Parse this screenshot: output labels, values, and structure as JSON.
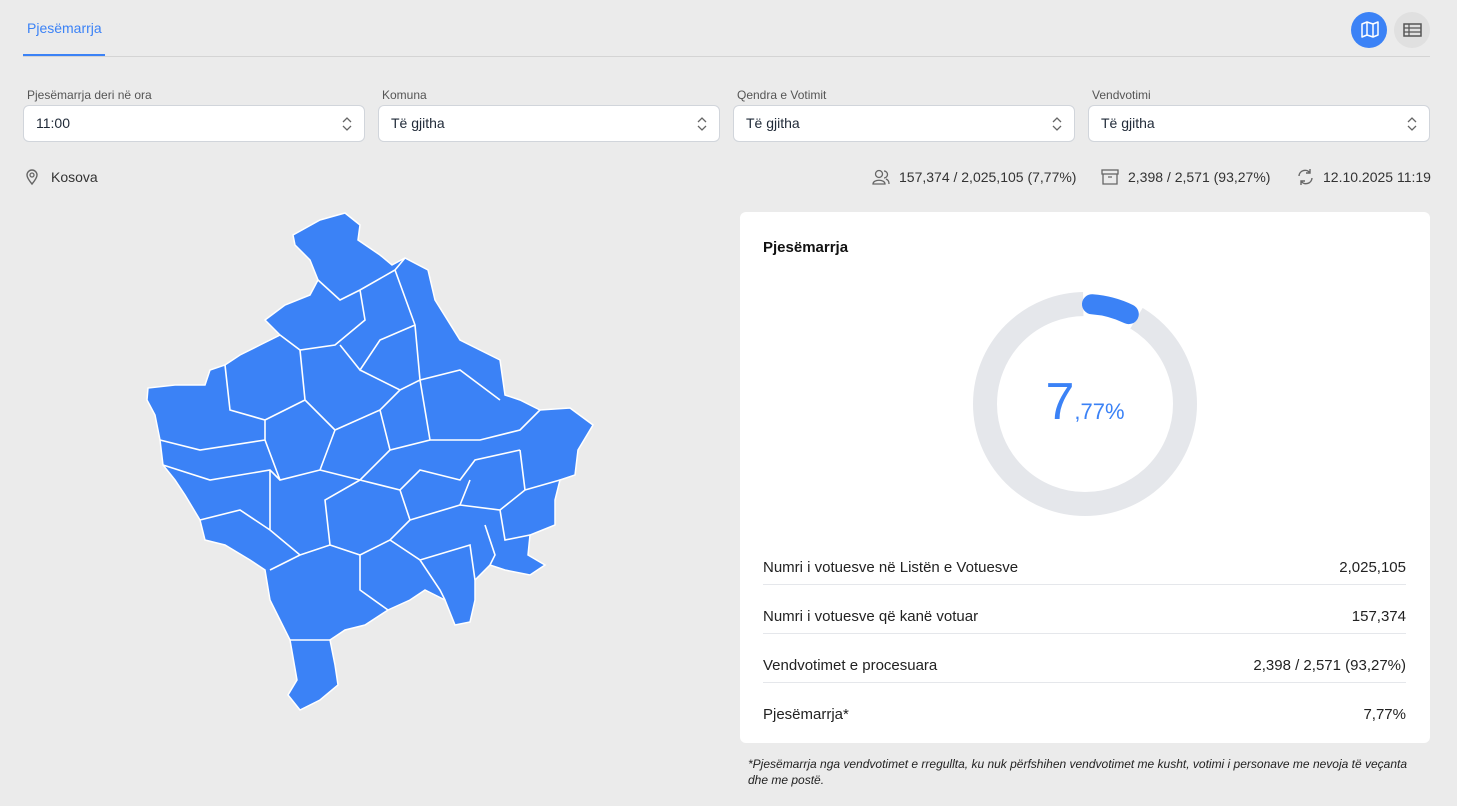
{
  "tabs": [
    "Pjesëmarrja"
  ],
  "filters": [
    {
      "label": "Pjesëmarrja deri në ora",
      "value": "11:00"
    },
    {
      "label": "Komuna",
      "value": "Të gjitha"
    },
    {
      "label": "Qendra e Votimit",
      "value": "Të gjitha"
    },
    {
      "label": "Vendvotimi",
      "value": "Të gjitha"
    }
  ],
  "summary": {
    "location": "Kosova",
    "voters": "157,374 / 2,025,105 (7,77%)",
    "stations": "2,398 / 2,571 (93,27%)",
    "updated": "12.10.2025 11:19"
  },
  "card": {
    "title": "Pjesëmarrja",
    "donut": {
      "value": 7.77,
      "integer_label": "7",
      "decimal_label": ",77%"
    },
    "rows": [
      {
        "label": "Numri i votuesve në Listën e Votuesve",
        "value": "2,025,105"
      },
      {
        "label": "Numri i votuesve që kanë votuar",
        "value": "157,374"
      },
      {
        "label": "Vendvotimet e procesuara",
        "value": "2,398 / 2,571 (93,27%)"
      },
      {
        "label": "Pjesëmarrja*",
        "value": "7,77%"
      }
    ]
  },
  "footnote": "*Pjesëmarrja nga vendvotimet e rregullta, ku nuk përfshihen vendvotimet me kusht, votimi i personave me nevoja të veçanta dhe me postë."
}
